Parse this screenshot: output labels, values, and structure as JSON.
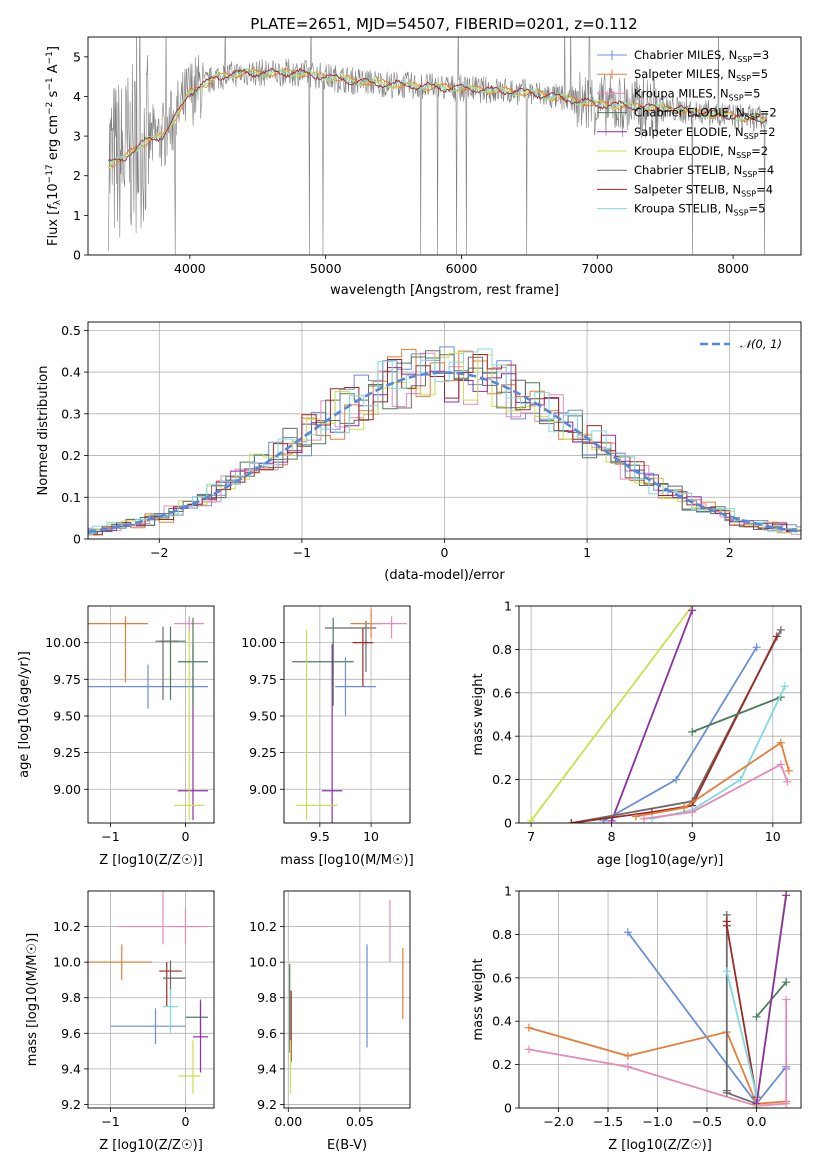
{
  "figure": {
    "title": "PLATE=2651, MJD=54507, FIBERID=0201, z=0.112"
  },
  "colors": {
    "grid": "#b0b0b0",
    "axis": "#000000",
    "gaussian": "#5588dd",
    "series": [
      "#6a8fd8",
      "#e87d3a",
      "#e88ab7",
      "#4d7d5a",
      "#8e2fa8",
      "#ccdf4e",
      "#6b6b6b",
      "#9e2a24",
      "#7fdbe0"
    ]
  },
  "legend_spec": {
    "labels": [
      "Chabrier MILES, N",
      "Salpeter MILES, N",
      "Kroupa MILES, N",
      "Chabrier ELODIE, N",
      "Salpeter ELODIE, N",
      "Kroupa ELODIE, N",
      "Chabrier STELIB, N",
      "Salpeter STELIB, N",
      "Kroupa STELIB, N"
    ],
    "subscript": "SSP",
    "counts": [
      "=3",
      "=5",
      "=5",
      "=2",
      "=2",
      "=2",
      "=4",
      "=4",
      "=5"
    ],
    "resid_label": "𝒩(0, 1)"
  },
  "chart_data": [
    {
      "id": "spectrum",
      "type": "line",
      "title": "PLATE=2651, MJD=54507, FIBERID=0201, z=0.112",
      "xlabel": "wavelength [Angstrom, rest frame]",
      "ylabel": "Flux [f_λ 10^-17 erg cm^-2 s^-1 A^-1]",
      "xlim": [
        3250,
        8500
      ],
      "ylim": [
        0,
        5.5
      ],
      "xticks": [
        4000,
        5000,
        6000,
        7000,
        8000
      ],
      "yticks": [
        0,
        1,
        2,
        3,
        4,
        5
      ],
      "grid": false,
      "legend_position": "top-right",
      "data_envelope": {
        "x": [
          3400,
          3500,
          3600,
          3700,
          3800,
          3900,
          4000,
          4200,
          4400,
          4600,
          4800,
          5000,
          5200,
          5500,
          6000,
          6500,
          7000,
          7500,
          8000,
          8250
        ],
        "y": [
          2.3,
          2.4,
          2.7,
          2.9,
          3.0,
          3.5,
          4.1,
          4.5,
          4.6,
          4.6,
          4.6,
          4.5,
          4.4,
          4.3,
          4.2,
          4.1,
          3.8,
          3.7,
          3.5,
          3.4
        ]
      }
    },
    {
      "id": "residuals",
      "type": "line",
      "xlabel": "(data-model)/error",
      "ylabel": "Normed distribution",
      "xlim": [
        -2.5,
        2.5
      ],
      "ylim": [
        0,
        0.52
      ],
      "xticks": [
        -2,
        -1,
        0,
        1,
        2
      ],
      "yticks": [
        0.0,
        0.1,
        0.2,
        0.3,
        0.4,
        0.5
      ],
      "grid": true,
      "legend_position": "top-right",
      "series": [
        {
          "name": "𝒩(0,1)",
          "function": "gaussian",
          "mean": 0,
          "sigma": 1
        }
      ]
    },
    {
      "id": "age_vs_Z",
      "type": "scatter",
      "xlabel": "Z [log10(Z/Z☉)]",
      "ylabel": "age [log10(age/yr)]",
      "xlim": [
        -1.3,
        0.38
      ],
      "ylim": [
        8.77,
        10.25
      ],
      "xticks": [
        -1,
        0
      ],
      "yticks": [
        9.0,
        9.25,
        9.5,
        9.75,
        10.0
      ],
      "ytick_labels": [
        "9.00",
        "9.25",
        "9.50",
        "9.75",
        "10.00"
      ],
      "grid": true,
      "points": [
        {
          "x": -0.8,
          "y": 10.13,
          "xerr": [
            0.5,
            0.3
          ],
          "yerr": [
            0.4,
            0.05
          ],
          "color": 1
        },
        {
          "x": -0.5,
          "y": 9.7,
          "xerr": [
            0.8,
            0.8
          ],
          "yerr": [
            0.15,
            0.15
          ],
          "color": 0
        },
        {
          "x": 0.05,
          "y": 10.13,
          "xerr": [
            0.2,
            0.2
          ],
          "yerr": [
            0.1,
            0.05
          ],
          "color": 2
        },
        {
          "x": -0.2,
          "y": 10.01,
          "xerr": [
            0.15,
            0.2
          ],
          "yerr": [
            0.4,
            0.1
          ],
          "color": 3
        },
        {
          "x": 0.1,
          "y": 8.99,
          "xerr": [
            0.2,
            0.2
          ],
          "yerr": [
            0.2,
            1.0
          ],
          "color": 4
        },
        {
          "x": 0.05,
          "y": 8.89,
          "xerr": [
            0.2,
            0.2
          ],
          "yerr": [
            0.1,
            1.2
          ],
          "color": 5
        },
        {
          "x": -0.3,
          "y": 10.01,
          "xerr": [
            0.1,
            0.2
          ],
          "yerr": [
            0.4,
            0.1
          ],
          "color": 6
        },
        {
          "x": 0.1,
          "y": 9.87,
          "xerr": [
            0.2,
            0.2
          ],
          "yerr": [
            0.3,
            0.3
          ],
          "color": 3
        }
      ]
    },
    {
      "id": "age_vs_mass",
      "type": "scatter",
      "xlabel": "mass [log10(M/M☉)]",
      "ylabel": "",
      "xlim": [
        9.15,
        10.38
      ],
      "ylim": [
        8.77,
        10.25
      ],
      "xticks": [
        9.5,
        10.0
      ],
      "yticks": [
        9.0,
        9.25,
        9.5,
        9.75,
        10.0
      ],
      "ytick_labels": [
        "9.00",
        "9.25",
        "9.50",
        "9.75",
        "10.00"
      ],
      "grid": true,
      "points": [
        {
          "x": 9.63,
          "y": 9.87,
          "xerr": [
            0.4,
            0.2
          ],
          "yerr": [
            0.3,
            0.3
          ],
          "color": 3
        },
        {
          "x": 9.75,
          "y": 9.7,
          "xerr": [
            0.1,
            0.3
          ],
          "yerr": [
            0.2,
            0.2
          ],
          "color": 0
        },
        {
          "x": 9.62,
          "y": 8.99,
          "xerr": [
            0.1,
            0.1
          ],
          "yerr": [
            0.4,
            1.0
          ],
          "color": 4
        },
        {
          "x": 9.37,
          "y": 8.89,
          "xerr": [
            0.1,
            0.3
          ],
          "yerr": [
            0.1,
            1.2
          ],
          "color": 5
        },
        {
          "x": 9.95,
          "y": 10.1,
          "xerr": [
            0.4,
            0.1
          ],
          "yerr": [
            0.3,
            0.05
          ],
          "color": 6
        },
        {
          "x": 10.0,
          "y": 10.13,
          "xerr": [
            0.2,
            0.1
          ],
          "yerr": [
            0.1,
            0.1
          ],
          "color": 1
        },
        {
          "x": 10.2,
          "y": 10.13,
          "xerr": [
            0.2,
            0.15
          ],
          "yerr": [
            0.1,
            0.05
          ],
          "color": 2
        },
        {
          "x": 9.92,
          "y": 10.0,
          "xerr": [
            0.1,
            0.1
          ],
          "yerr": [
            0.3,
            0.1
          ],
          "color": 7
        }
      ]
    },
    {
      "id": "weight_vs_age",
      "type": "line",
      "xlabel": "age [log10(age/yr)]",
      "ylabel": "mass weight",
      "xlim": [
        6.85,
        10.35
      ],
      "ylim": [
        0,
        1.0
      ],
      "xticks": [
        7,
        8,
        9,
        10
      ],
      "yticks": [
        0.0,
        0.2,
        0.4,
        0.6,
        0.8,
        1.0
      ],
      "grid": true,
      "series": [
        {
          "color": 5,
          "x": [
            7.0,
            9.0
          ],
          "y": [
            0.01,
            1.0
          ]
        },
        {
          "color": 4,
          "x": [
            8.0,
            9.0
          ],
          "y": [
            0.01,
            0.98
          ]
        },
        {
          "color": 0,
          "x": [
            7.9,
            8.8,
            9.8
          ],
          "y": [
            0.01,
            0.2,
            0.81
          ]
        },
        {
          "color": 6,
          "x": [
            7.5,
            9.0,
            10.1
          ],
          "y": [
            0.0,
            0.1,
            0.89
          ]
        },
        {
          "color": 7,
          "x": [
            7.5,
            8.5,
            9.0,
            10.05
          ],
          "y": [
            0.0,
            0.05,
            0.08,
            0.86
          ]
        },
        {
          "color": 3,
          "x": [
            9.0,
            10.1
          ],
          "y": [
            0.42,
            0.58
          ]
        },
        {
          "color": 8,
          "x": [
            8.5,
            9.0,
            9.6,
            10.15
          ],
          "y": [
            0.02,
            0.06,
            0.2,
            0.63
          ]
        },
        {
          "color": 1,
          "x": [
            8.3,
            8.9,
            10.1,
            10.2
          ],
          "y": [
            0.03,
            0.07,
            0.37,
            0.24
          ]
        },
        {
          "color": 2,
          "x": [
            8.4,
            9.0,
            10.1,
            10.18
          ],
          "y": [
            0.02,
            0.05,
            0.27,
            0.19
          ]
        }
      ]
    },
    {
      "id": "mass_vs_Z",
      "type": "scatter",
      "xlabel": "Z [log10(Z/Z☉)]",
      "ylabel": "mass [log10(M/M☉)]",
      "xlim": [
        -1.3,
        0.38
      ],
      "ylim": [
        9.18,
        10.4
      ],
      "xticks": [
        -1,
        0
      ],
      "yticks": [
        9.2,
        9.4,
        9.6,
        9.8,
        10.0,
        10.2
      ],
      "ytick_labels": [
        "9.2",
        "9.4",
        "9.6",
        "9.8",
        "10.0",
        "10.2"
      ],
      "grid": true,
      "points": [
        {
          "x": -0.85,
          "y": 10.0,
          "xerr": [
            0.45,
            0.4
          ],
          "yerr": [
            0.1,
            0.1
          ],
          "color": 1
        },
        {
          "x": -0.3,
          "y": 10.2,
          "xerr": [
            0.6,
            0.6
          ],
          "yerr": [
            0.1,
            0.2
          ],
          "color": 2
        },
        {
          "x": 0.0,
          "y": 10.2,
          "xerr": [
            0.2,
            0.2
          ],
          "yerr": [
            0.1,
            0.1
          ],
          "color": 2
        },
        {
          "x": -0.4,
          "y": 9.64,
          "xerr": [
            0.6,
            0.4
          ],
          "yerr": [
            0.1,
            0.1
          ],
          "color": 0
        },
        {
          "x": -0.25,
          "y": 9.95,
          "xerr": [
            0.1,
            0.2
          ],
          "yerr": [
            0.2,
            0.05
          ],
          "color": 7
        },
        {
          "x": -0.2,
          "y": 9.91,
          "xerr": [
            0.1,
            0.2
          ],
          "yerr": [
            0.1,
            0.1
          ],
          "color": 6
        },
        {
          "x": 0.2,
          "y": 9.69,
          "xerr": [
            0.2,
            0.1
          ],
          "yerr": [
            0.1,
            0.1
          ],
          "color": 3
        },
        {
          "x": 0.2,
          "y": 9.58,
          "xerr": [
            0.1,
            0.1
          ],
          "yerr": [
            0.2,
            0.2
          ],
          "color": 4
        },
        {
          "x": 0.1,
          "y": 9.36,
          "xerr": [
            0.2,
            0.1
          ],
          "yerr": [
            0.1,
            0.2
          ],
          "color": 5
        },
        {
          "x": -0.2,
          "y": 9.75,
          "xerr": [
            0.1,
            0.1
          ],
          "yerr": [
            0.15,
            0.1
          ],
          "color": 8
        }
      ]
    },
    {
      "id": "mass_vs_ebv",
      "type": "scatter",
      "xlabel": "E(B-V)",
      "ylabel": "",
      "xlim": [
        -0.003,
        0.085
      ],
      "ylim": [
        9.18,
        10.4
      ],
      "xticks": [
        0.0,
        0.05
      ],
      "xtick_labels": [
        "0.00",
        "0.05"
      ],
      "yticks": [
        9.2,
        9.4,
        9.6,
        9.8,
        10.0,
        10.2
      ],
      "ytick_labels": [
        "9.2",
        "9.4",
        "9.6",
        "9.8",
        "10.0",
        "10.2"
      ],
      "grid": true,
      "points": [
        {
          "x": 0.001,
          "y": 9.69,
          "xerr": [
            0,
            0
          ],
          "yerr": [
            0.2,
            0.3
          ],
          "color": 3
        },
        {
          "x": 0.002,
          "y": 9.64,
          "xerr": [
            0,
            0
          ],
          "yerr": [
            0.2,
            0.2
          ],
          "color": 7
        },
        {
          "x": 0.0015,
          "y": 9.36,
          "xerr": [
            0,
            0
          ],
          "yerr": [
            0.1,
            0.2
          ],
          "color": 5
        },
        {
          "x": 0.055,
          "y": 9.8,
          "xerr": [
            0,
            0
          ],
          "yerr": [
            0.28,
            0.3
          ],
          "color": 0
        },
        {
          "x": 0.071,
          "y": 10.15,
          "xerr": [
            0,
            0
          ],
          "yerr": [
            0.15,
            0.2
          ],
          "color": 2
        },
        {
          "x": 0.08,
          "y": 9.88,
          "xerr": [
            0,
            0
          ],
          "yerr": [
            0.2,
            0.2
          ],
          "color": 1
        }
      ]
    },
    {
      "id": "weight_vs_Z",
      "type": "line",
      "xlabel": "Z [log10(Z/Z☉)]",
      "ylabel": "mass weight",
      "xlim": [
        -2.4,
        0.45
      ],
      "ylim": [
        0,
        1.0
      ],
      "xticks": [
        -2.0,
        -1.5,
        -1.0,
        -0.5,
        0.0
      ],
      "xtick_labels": [
        "−2.0",
        "−1.5",
        "−1.0",
        "−0.5",
        "0.0"
      ],
      "yticks": [
        0.0,
        0.2,
        0.4,
        0.6,
        0.8,
        1.0
      ],
      "grid": true,
      "series": [
        {
          "color": 0,
          "x": [
            -1.3,
            0.0,
            0.3,
            0.3
          ],
          "y": [
            0.81,
            0.02,
            0.19,
            0.18
          ]
        },
        {
          "color": 1,
          "x": [
            -2.3,
            -1.3,
            -0.3,
            0.0,
            0.3
          ],
          "y": [
            0.37,
            0.24,
            0.35,
            0.02,
            0.03
          ]
        },
        {
          "color": 2,
          "x": [
            -2.3,
            -1.3,
            0.0,
            0.3,
            0.3
          ],
          "y": [
            0.27,
            0.19,
            0.01,
            0.02,
            0.5
          ]
        },
        {
          "color": 6,
          "x": [
            -0.3,
            -0.3,
            -0.3,
            0.0,
            0.0
          ],
          "y": [
            0.89,
            0.08,
            0.07,
            0.02,
            0.0
          ]
        },
        {
          "color": 7,
          "x": [
            -0.3,
            -0.3,
            0.0,
            0.0
          ],
          "y": [
            0.86,
            0.84,
            0.05,
            0.02
          ]
        },
        {
          "color": 3,
          "x": [
            0.0,
            0.3
          ],
          "y": [
            0.42,
            0.58
          ]
        },
        {
          "color": 8,
          "x": [
            -0.3,
            0.0,
            0.0
          ],
          "y": [
            0.63,
            0.06,
            0.02
          ]
        },
        {
          "color": 5,
          "x": [
            0.0,
            0.3
          ],
          "y": [
            0.01,
            1.0
          ]
        },
        {
          "color": 4,
          "x": [
            0.0,
            0.3
          ],
          "y": [
            0.02,
            0.98
          ]
        }
      ]
    }
  ]
}
